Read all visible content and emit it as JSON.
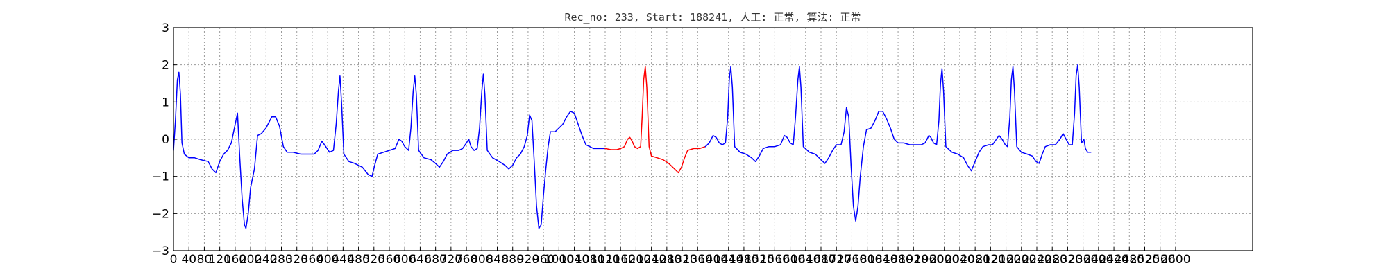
{
  "chart_data": {
    "type": "line",
    "title": "Rec_no: 233, Start: 188241, 人工: 正常, 算法: 正常",
    "xlabel": "",
    "ylabel": "",
    "xlim": [
      0,
      2800
    ],
    "ylim": [
      -3,
      3
    ],
    "grid": true,
    "x_ticks": [
      0,
      40,
      80,
      120,
      160,
      200,
      240,
      280,
      320,
      360,
      400,
      440,
      480,
      520,
      560,
      600,
      640,
      680,
      720,
      760,
      800,
      840,
      880,
      920,
      960,
      1000,
      1040,
      1080,
      1120,
      1160,
      1200,
      1240,
      1280,
      1320,
      1360,
      1400,
      1440,
      1480,
      1520,
      1560,
      1600,
      1640,
      1680,
      1720,
      1760,
      1800,
      1840,
      1880,
      1920,
      1960,
      2000,
      2040,
      2080,
      2120,
      2160,
      2200,
      2240,
      2280,
      2320,
      2360,
      2400,
      2440,
      2480,
      2520,
      2560,
      2600
    ],
    "y_ticks": [
      -3,
      -2,
      -1,
      0,
      1,
      2,
      3
    ],
    "series": [
      {
        "color": "#0000ff",
        "points": [
          [
            0,
            -0.3
          ],
          [
            5,
            0.5
          ],
          [
            10,
            1.6
          ],
          [
            14,
            1.8
          ],
          [
            18,
            1.2
          ],
          [
            22,
            -0.1
          ],
          [
            28,
            -0.4
          ],
          [
            40,
            -0.5
          ],
          [
            55,
            -0.5
          ],
          [
            70,
            -0.55
          ],
          [
            90,
            -0.6
          ],
          [
            100,
            -0.8
          ],
          [
            110,
            -0.9
          ],
          [
            120,
            -0.6
          ],
          [
            130,
            -0.4
          ],
          [
            140,
            -0.3
          ],
          [
            150,
            -0.1
          ],
          [
            160,
            0.4
          ],
          [
            166,
            0.7
          ],
          [
            172,
            -0.5
          ],
          [
            178,
            -1.6
          ],
          [
            184,
            -2.3
          ],
          [
            188,
            -2.4
          ],
          [
            194,
            -2.0
          ],
          [
            200,
            -1.3
          ],
          [
            210,
            -0.8
          ],
          [
            218,
            0.1
          ],
          [
            228,
            0.15
          ],
          [
            240,
            0.3
          ],
          [
            255,
            0.6
          ],
          [
            265,
            0.6
          ],
          [
            275,
            0.35
          ],
          [
            285,
            -0.2
          ],
          [
            295,
            -0.35
          ],
          [
            310,
            -0.35
          ],
          [
            330,
            -0.4
          ],
          [
            350,
            -0.4
          ],
          [
            365,
            -0.4
          ],
          [
            375,
            -0.3
          ],
          [
            385,
            -0.05
          ],
          [
            395,
            -0.2
          ],
          [
            405,
            -0.35
          ],
          [
            415,
            -0.3
          ],
          [
            422,
            0.4
          ],
          [
            428,
            1.3
          ],
          [
            432,
            1.7
          ],
          [
            436,
            1.0
          ],
          [
            442,
            -0.4
          ],
          [
            455,
            -0.6
          ],
          [
            470,
            -0.65
          ],
          [
            490,
            -0.75
          ],
          [
            505,
            -0.95
          ],
          [
            515,
            -1.0
          ],
          [
            522,
            -0.7
          ],
          [
            530,
            -0.4
          ],
          [
            545,
            -0.35
          ],
          [
            560,
            -0.3
          ],
          [
            575,
            -0.25
          ],
          [
            585,
            0.0
          ],
          [
            592,
            -0.05
          ],
          [
            600,
            -0.2
          ],
          [
            610,
            -0.3
          ],
          [
            616,
            0.3
          ],
          [
            622,
            1.3
          ],
          [
            626,
            1.7
          ],
          [
            630,
            1.2
          ],
          [
            636,
            -0.3
          ],
          [
            650,
            -0.5
          ],
          [
            668,
            -0.55
          ],
          [
            680,
            -0.65
          ],
          [
            690,
            -0.75
          ],
          [
            700,
            -0.6
          ],
          [
            710,
            -0.4
          ],
          [
            725,
            -0.3
          ],
          [
            740,
            -0.3
          ],
          [
            750,
            -0.25
          ],
          [
            760,
            -0.1
          ],
          [
            766,
            0.0
          ],
          [
            772,
            -0.2
          ],
          [
            780,
            -0.3
          ],
          [
            788,
            -0.25
          ],
          [
            794,
            0.3
          ],
          [
            800,
            1.3
          ],
          [
            804,
            1.75
          ],
          [
            808,
            1.2
          ],
          [
            814,
            -0.3
          ],
          [
            828,
            -0.5
          ],
          [
            845,
            -0.6
          ],
          [
            860,
            -0.7
          ],
          [
            870,
            -0.8
          ],
          [
            880,
            -0.7
          ],
          [
            890,
            -0.5
          ],
          [
            900,
            -0.4
          ],
          [
            910,
            -0.2
          ],
          [
            918,
            0.1
          ],
          [
            924,
            0.65
          ],
          [
            930,
            0.5
          ],
          [
            936,
            -0.6
          ],
          [
            942,
            -1.8
          ],
          [
            948,
            -2.4
          ],
          [
            954,
            -2.3
          ],
          [
            960,
            -1.5
          ],
          [
            966,
            -0.8
          ],
          [
            972,
            -0.2
          ],
          [
            978,
            0.2
          ],
          [
            990,
            0.2
          ],
          [
            1000,
            0.3
          ],
          [
            1010,
            0.4
          ],
          [
            1020,
            0.6
          ],
          [
            1030,
            0.75
          ],
          [
            1040,
            0.7
          ],
          [
            1050,
            0.4
          ],
          [
            1060,
            0.1
          ],
          [
            1070,
            -0.15
          ],
          [
            1080,
            -0.2
          ],
          [
            1090,
            -0.25
          ],
          [
            1100,
            -0.25
          ],
          [
            1110,
            -0.25
          ],
          [
            1120,
            -0.25
          ]
        ]
      },
      {
        "color": "#ff0000",
        "points": [
          [
            1120,
            -0.25
          ],
          [
            1135,
            -0.28
          ],
          [
            1150,
            -0.28
          ],
          [
            1160,
            -0.25
          ],
          [
            1170,
            -0.2
          ],
          [
            1178,
            0.0
          ],
          [
            1184,
            0.05
          ],
          [
            1190,
            -0.05
          ],
          [
            1196,
            -0.2
          ],
          [
            1204,
            -0.25
          ],
          [
            1212,
            -0.2
          ],
          [
            1216,
            0.6
          ],
          [
            1220,
            1.6
          ],
          [
            1224,
            1.95
          ],
          [
            1228,
            1.4
          ],
          [
            1234,
            -0.2
          ],
          [
            1240,
            -0.45
          ],
          [
            1255,
            -0.5
          ],
          [
            1270,
            -0.55
          ],
          [
            1285,
            -0.65
          ],
          [
            1300,
            -0.8
          ],
          [
            1310,
            -0.9
          ],
          [
            1318,
            -0.75
          ],
          [
            1326,
            -0.5
          ],
          [
            1334,
            -0.3
          ],
          [
            1350,
            -0.25
          ],
          [
            1365,
            -0.25
          ],
          [
            1380,
            -0.2
          ]
        ]
      },
      {
        "color": "#0000ff",
        "points": [
          [
            1380,
            -0.2
          ],
          [
            1390,
            -0.1
          ],
          [
            1400,
            0.1
          ],
          [
            1408,
            0.05
          ],
          [
            1416,
            -0.1
          ],
          [
            1424,
            -0.15
          ],
          [
            1432,
            -0.1
          ],
          [
            1438,
            0.6
          ],
          [
            1442,
            1.6
          ],
          [
            1446,
            1.95
          ],
          [
            1450,
            1.4
          ],
          [
            1456,
            -0.2
          ],
          [
            1470,
            -0.35
          ],
          [
            1485,
            -0.4
          ],
          [
            1500,
            -0.5
          ],
          [
            1510,
            -0.6
          ],
          [
            1520,
            -0.45
          ],
          [
            1530,
            -0.25
          ],
          [
            1545,
            -0.2
          ],
          [
            1560,
            -0.2
          ],
          [
            1575,
            -0.15
          ],
          [
            1585,
            0.1
          ],
          [
            1592,
            0.05
          ],
          [
            1600,
            -0.1
          ],
          [
            1608,
            -0.15
          ],
          [
            1614,
            0.6
          ],
          [
            1620,
            1.6
          ],
          [
            1624,
            1.95
          ],
          [
            1628,
            1.4
          ],
          [
            1634,
            -0.2
          ],
          [
            1650,
            -0.35
          ],
          [
            1665,
            -0.4
          ],
          [
            1680,
            -0.55
          ],
          [
            1690,
            -0.65
          ],
          [
            1700,
            -0.5
          ],
          [
            1710,
            -0.3
          ],
          [
            1720,
            -0.15
          ],
          [
            1732,
            -0.15
          ],
          [
            1740,
            0.2
          ],
          [
            1746,
            0.85
          ],
          [
            1752,
            0.6
          ],
          [
            1758,
            -0.7
          ],
          [
            1764,
            -1.8
          ],
          [
            1770,
            -2.2
          ],
          [
            1776,
            -1.8
          ],
          [
            1782,
            -1.0
          ],
          [
            1790,
            -0.2
          ],
          [
            1798,
            0.25
          ],
          [
            1810,
            0.3
          ],
          [
            1820,
            0.5
          ],
          [
            1830,
            0.75
          ],
          [
            1840,
            0.75
          ],
          [
            1850,
            0.55
          ],
          [
            1860,
            0.3
          ],
          [
            1870,
            0.0
          ],
          [
            1880,
            -0.1
          ],
          [
            1895,
            -0.1
          ],
          [
            1910,
            -0.15
          ],
          [
            1925,
            -0.15
          ],
          [
            1940,
            -0.15
          ],
          [
            1950,
            -0.1
          ],
          [
            1960,
            0.1
          ],
          [
            1965,
            0.05
          ],
          [
            1972,
            -0.1
          ],
          [
            1980,
            -0.15
          ],
          [
            1986,
            0.5
          ],
          [
            1990,
            1.5
          ],
          [
            1994,
            1.9
          ],
          [
            1998,
            1.3
          ],
          [
            2004,
            -0.2
          ],
          [
            2020,
            -0.35
          ],
          [
            2035,
            -0.4
          ],
          [
            2050,
            -0.5
          ],
          [
            2060,
            -0.7
          ],
          [
            2070,
            -0.85
          ],
          [
            2080,
            -0.6
          ],
          [
            2090,
            -0.35
          ],
          [
            2100,
            -0.2
          ],
          [
            2115,
            -0.15
          ],
          [
            2125,
            -0.15
          ],
          [
            2135,
            0.0
          ],
          [
            2142,
            0.1
          ],
          [
            2150,
            0.0
          ],
          [
            2158,
            -0.15
          ],
          [
            2164,
            -0.2
          ],
          [
            2170,
            0.6
          ],
          [
            2174,
            1.6
          ],
          [
            2178,
            1.95
          ],
          [
            2182,
            1.3
          ],
          [
            2188,
            -0.2
          ],
          [
            2200,
            -0.35
          ],
          [
            2215,
            -0.4
          ],
          [
            2228,
            -0.45
          ],
          [
            2238,
            -0.6
          ],
          [
            2246,
            -0.65
          ],
          [
            2254,
            -0.4
          ],
          [
            2262,
            -0.2
          ],
          [
            2275,
            -0.15
          ],
          [
            2288,
            -0.15
          ],
          [
            2300,
            0.0
          ],
          [
            2308,
            0.15
          ],
          [
            2316,
            0.0
          ],
          [
            2324,
            -0.15
          ],
          [
            2332,
            -0.15
          ],
          [
            2338,
            0.7
          ],
          [
            2342,
            1.7
          ],
          [
            2346,
            2.0
          ],
          [
            2350,
            1.4
          ],
          [
            2356,
            -0.1
          ],
          [
            2362,
            0.0
          ],
          [
            2366,
            -0.25
          ],
          [
            2372,
            -0.35
          ],
          [
            2380,
            -0.35
          ]
        ]
      }
    ]
  }
}
